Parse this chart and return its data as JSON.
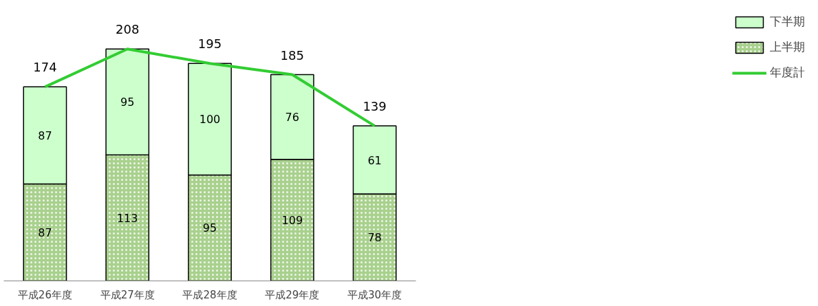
{
  "chart_data": {
    "type": "bar",
    "stacked": true,
    "categories": [
      "平成26年度",
      "平成27年度",
      "平成28年度",
      "平成29年度",
      "平成30年度"
    ],
    "series": [
      {
        "name": "上半期",
        "color": "#a9d18e",
        "values": [
          87,
          113,
          95,
          109,
          78
        ]
      },
      {
        "name": "下半期",
        "color": "#ccffcc",
        "values": [
          87,
          95,
          100,
          76,
          61
        ]
      },
      {
        "name": "年度計",
        "type": "line",
        "color": "#33cc33",
        "values": [
          174,
          208,
          195,
          185,
          139
        ]
      }
    ],
    "tick_labels": "x",
    "data_labels": true,
    "legend": "right",
    "grid": false
  }
}
